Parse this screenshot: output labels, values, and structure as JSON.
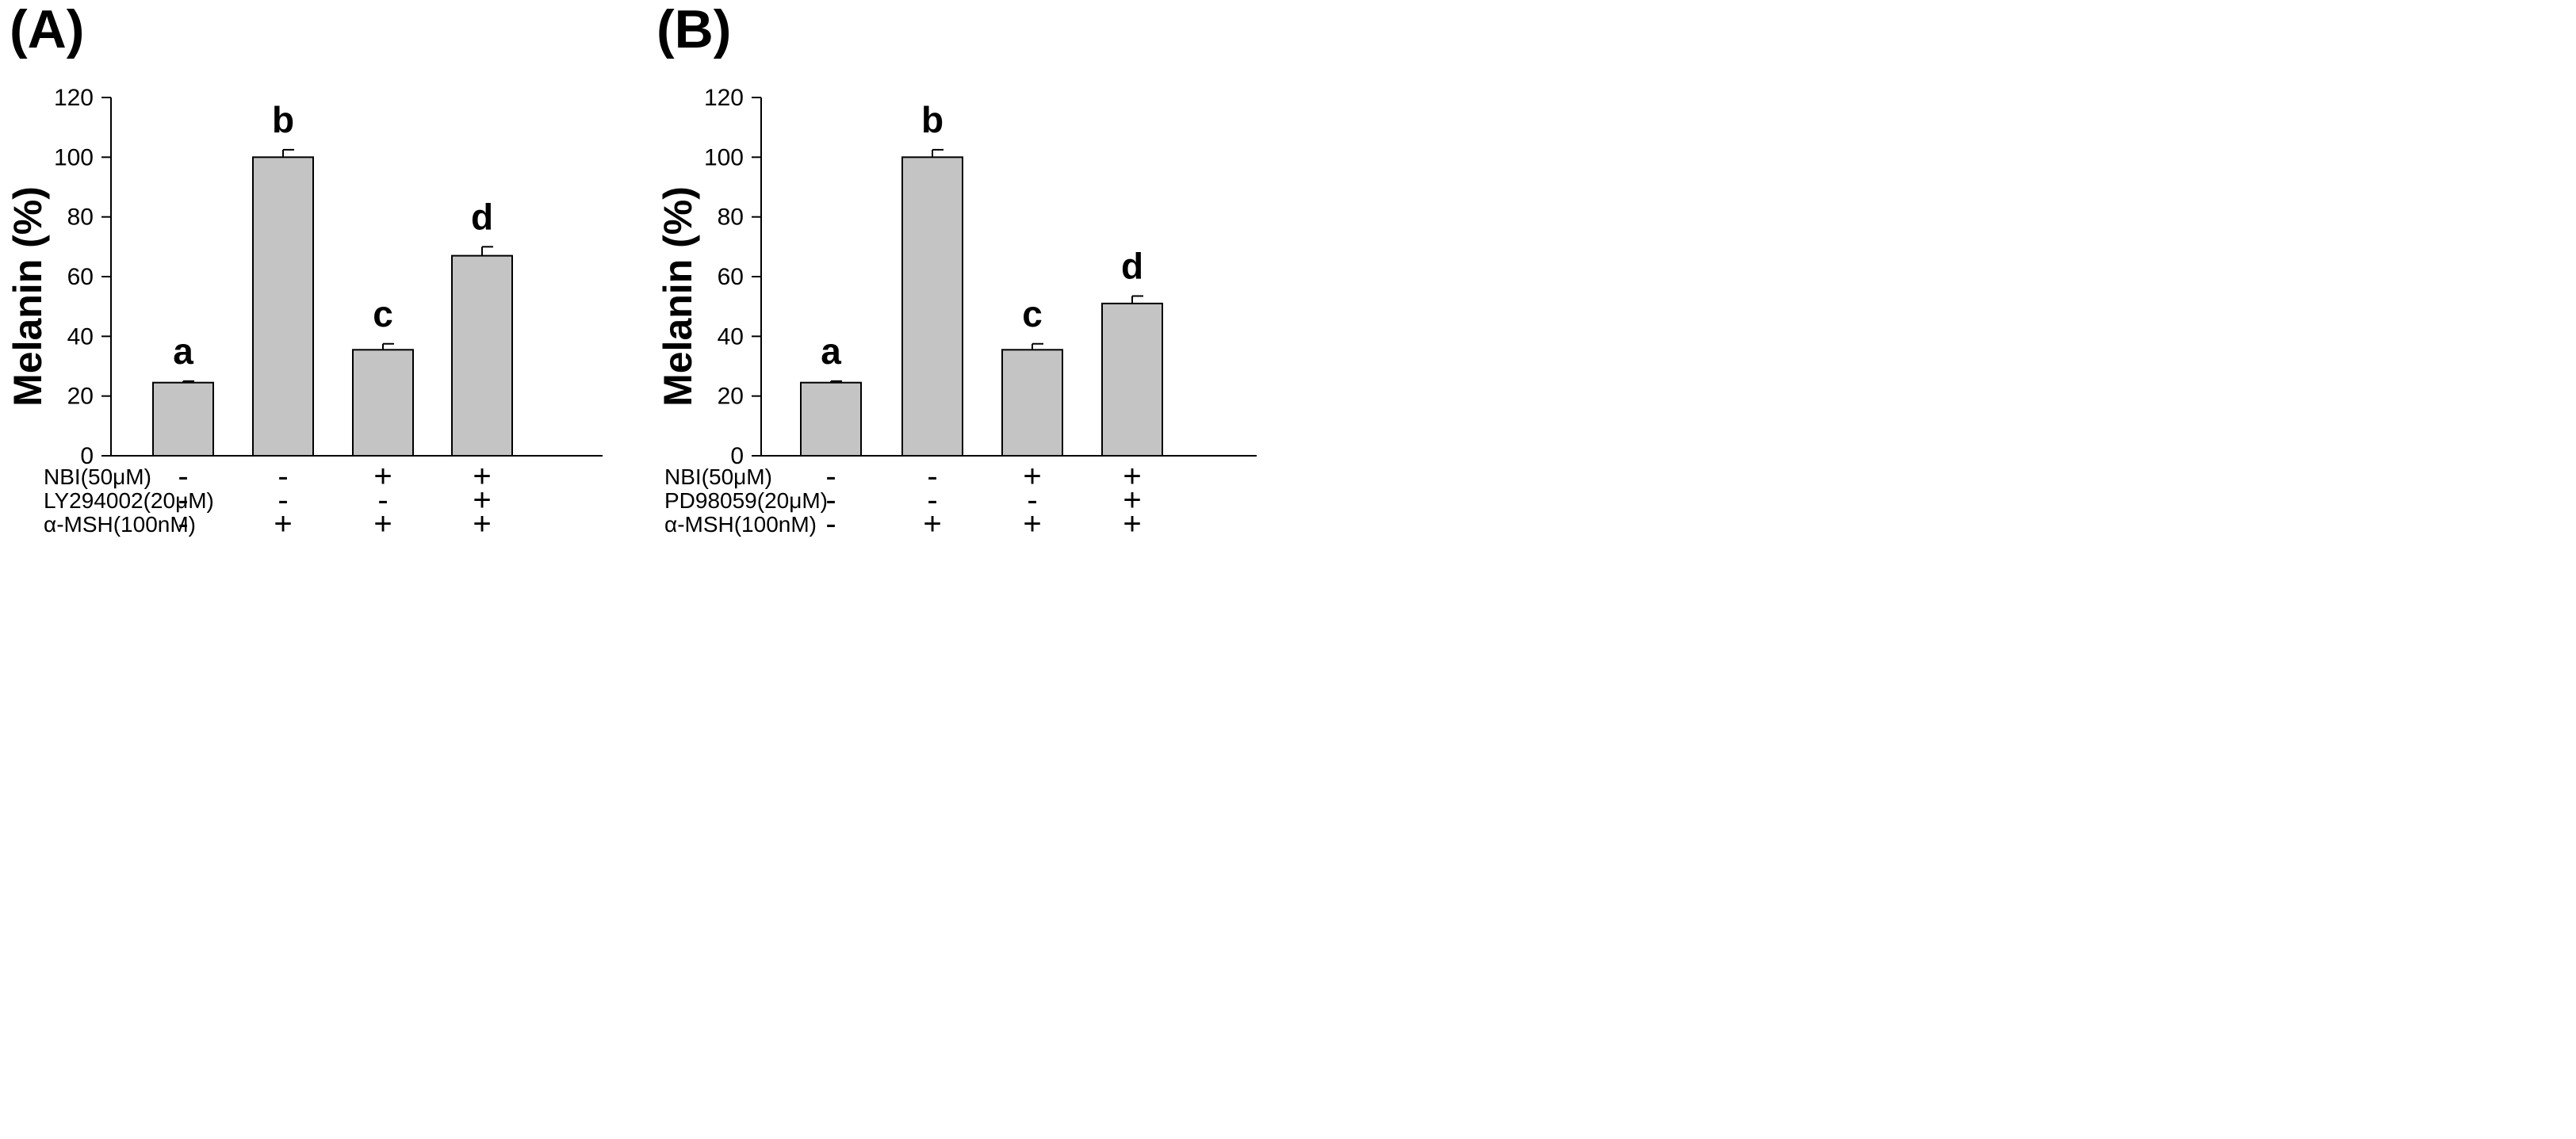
{
  "chart_data": [
    {
      "type": "bar",
      "panel_label": "(A)",
      "ylabel": "Melanin (%)",
      "ylim": [
        0,
        120
      ],
      "yticks": [
        0,
        20,
        40,
        60,
        80,
        100,
        120
      ],
      "bar_color": "#c4c4c4",
      "values": [
        24.5,
        100,
        35.5,
        67
      ],
      "errors": [
        0.5,
        2.5,
        2,
        3
      ],
      "significance": [
        "a",
        "b",
        "c",
        "d"
      ],
      "treatments": [
        {
          "label": "NBI(50μM)",
          "signs": [
            "-",
            "-",
            "+",
            "+"
          ]
        },
        {
          "label": "LY294002(20μM)",
          "signs": [
            "-",
            "-",
            "-",
            "+"
          ]
        },
        {
          "label": "α-MSH(100nM)",
          "signs": [
            "-",
            "+",
            "+",
            "+"
          ]
        }
      ]
    },
    {
      "type": "bar",
      "panel_label": "(B)",
      "ylabel": "Melanin (%)",
      "ylim": [
        0,
        120
      ],
      "yticks": [
        0,
        20,
        40,
        60,
        80,
        100,
        120
      ],
      "bar_color": "#c4c4c4",
      "values": [
        24.5,
        100,
        35.5,
        51
      ],
      "errors": [
        0.5,
        2.5,
        2,
        2.5
      ],
      "significance": [
        "a",
        "b",
        "c",
        "d"
      ],
      "treatments": [
        {
          "label": "NBI(50μM)",
          "signs": [
            "-",
            "-",
            "+",
            "+"
          ]
        },
        {
          "label": "PD98059(20μM)",
          "signs": [
            "-",
            "-",
            "-",
            "+"
          ]
        },
        {
          "label": "α-MSH(100nM)",
          "signs": [
            "-",
            "+",
            "+",
            "+"
          ]
        }
      ]
    }
  ]
}
